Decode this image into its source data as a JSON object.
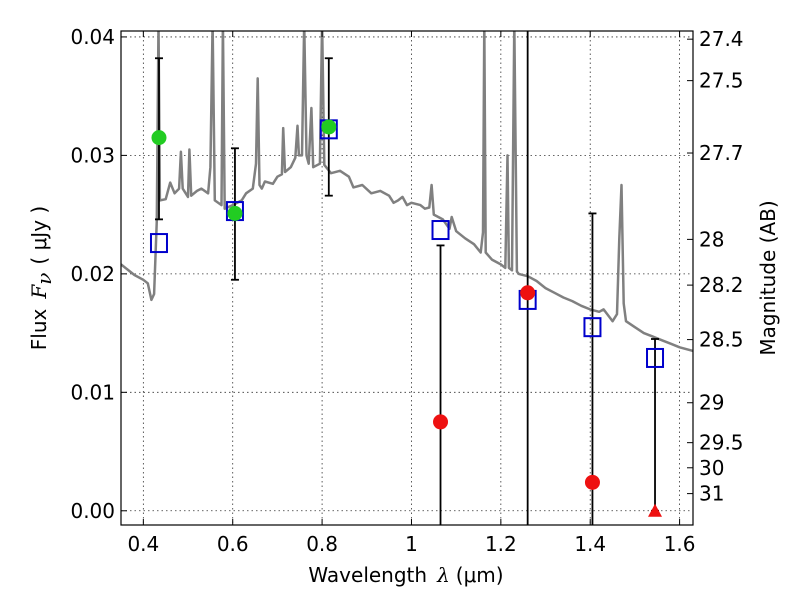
{
  "chart_data": {
    "type": "scatter",
    "xlabel": "Wavelength",
    "xlabel_symbol": "λ",
    "xlabel_unit": "(μm)",
    "ylabel": "Flux",
    "ylabel_symbol": "F",
    "ylabel_subscript": "ν",
    "ylabel_unit": "( μJy )",
    "y2label": "Magnitude (AB)",
    "xlim": [
      0.35,
      1.63
    ],
    "ylim": [
      -0.0012,
      0.0405
    ],
    "grid": true,
    "x_ticks": [
      0.4,
      0.6,
      0.8,
      1.0,
      1.2,
      1.4,
      1.6
    ],
    "x_tick_labels": [
      "0.4",
      "0.6",
      "0.8",
      "1",
      "1.2",
      "1.4",
      "1.6"
    ],
    "y_ticks": [
      0.0,
      0.01,
      0.02,
      0.03,
      0.04
    ],
    "y_tick_labels": [
      "0.00",
      "0.01",
      "0.02",
      "0.03",
      "0.04"
    ],
    "y2_ticks": [
      {
        "label": "27.4",
        "flux": 0.03981
      },
      {
        "label": "27.5",
        "flux": 0.03631
      },
      {
        "label": "27.7",
        "flux": 0.0302
      },
      {
        "label": "28",
        "flux": 0.02291
      },
      {
        "label": "28.2",
        "flux": 0.01905
      },
      {
        "label": "28.5",
        "flux": 0.01445
      },
      {
        "label": "29",
        "flux": 0.00912
      },
      {
        "label": "29.5",
        "flux": 0.00575
      },
      {
        "label": "30",
        "flux": 0.00363
      },
      {
        "label": "31",
        "flux": 0.00145
      }
    ],
    "series": [
      {
        "kind": "line",
        "color": "#808080",
        "points": [
          [
            0.35,
            0.0208
          ],
          [
            0.38,
            0.0199
          ],
          [
            0.4,
            0.0195
          ],
          [
            0.41,
            0.0192
          ],
          [
            0.418,
            0.0178
          ],
          [
            0.424,
            0.0183
          ],
          [
            0.43,
            0.0245
          ],
          [
            0.434,
            0.0412
          ],
          [
            0.437,
            0.0262
          ],
          [
            0.45,
            0.0263
          ],
          [
            0.46,
            0.0277
          ],
          [
            0.47,
            0.0268
          ],
          [
            0.48,
            0.0272
          ],
          [
            0.484,
            0.0303
          ],
          [
            0.488,
            0.0272
          ],
          [
            0.5,
            0.0265
          ],
          [
            0.503,
            0.0305
          ],
          [
            0.507,
            0.0266
          ],
          [
            0.52,
            0.027
          ],
          [
            0.53,
            0.0272
          ],
          [
            0.545,
            0.0268
          ],
          [
            0.55,
            0.029
          ],
          [
            0.555,
            0.0412
          ],
          [
            0.56,
            0.0262
          ],
          [
            0.575,
            0.0258
          ],
          [
            0.578,
            0.0412
          ],
          [
            0.582,
            0.0255
          ],
          [
            0.6,
            0.0258
          ],
          [
            0.62,
            0.0262
          ],
          [
            0.63,
            0.0268
          ],
          [
            0.645,
            0.0272
          ],
          [
            0.652,
            0.0293
          ],
          [
            0.656,
            0.0365
          ],
          [
            0.66,
            0.0275
          ],
          [
            0.665,
            0.0272
          ],
          [
            0.672,
            0.0278
          ],
          [
            0.69,
            0.0276
          ],
          [
            0.7,
            0.0282
          ],
          [
            0.71,
            0.0284
          ],
          [
            0.713,
            0.0323
          ],
          [
            0.717,
            0.0286
          ],
          [
            0.73,
            0.029
          ],
          [
            0.74,
            0.0298
          ],
          [
            0.745,
            0.0325
          ],
          [
            0.748,
            0.03
          ],
          [
            0.755,
            0.03
          ],
          [
            0.76,
            0.0412
          ],
          [
            0.765,
            0.03
          ],
          [
            0.77,
            0.0293
          ],
          [
            0.776,
            0.034
          ],
          [
            0.78,
            0.029
          ],
          [
            0.795,
            0.0293
          ],
          [
            0.8,
            0.0412
          ],
          [
            0.805,
            0.0292
          ],
          [
            0.82,
            0.0285
          ],
          [
            0.84,
            0.0287
          ],
          [
            0.86,
            0.0282
          ],
          [
            0.87,
            0.0273
          ],
          [
            0.89,
            0.0275
          ],
          [
            0.91,
            0.0268
          ],
          [
            0.93,
            0.027
          ],
          [
            0.95,
            0.0266
          ],
          [
            0.96,
            0.026
          ],
          [
            0.97,
            0.0262
          ],
          [
            0.98,
            0.0265
          ],
          [
            0.99,
            0.0258
          ],
          [
            1.0,
            0.026
          ],
          [
            1.02,
            0.0258
          ],
          [
            1.03,
            0.0255
          ],
          [
            1.04,
            0.0256
          ],
          [
            1.045,
            0.0275
          ],
          [
            1.05,
            0.025
          ],
          [
            1.07,
            0.0246
          ],
          [
            1.085,
            0.0238
          ],
          [
            1.09,
            0.0248
          ],
          [
            1.1,
            0.0236
          ],
          [
            1.12,
            0.023
          ],
          [
            1.14,
            0.0225
          ],
          [
            1.155,
            0.0218
          ],
          [
            1.16,
            0.0235
          ],
          [
            1.163,
            0.0412
          ],
          [
            1.166,
            0.0218
          ],
          [
            1.18,
            0.0212
          ],
          [
            1.2,
            0.0208
          ],
          [
            1.21,
            0.0205
          ],
          [
            1.215,
            0.03
          ],
          [
            1.218,
            0.0205
          ],
          [
            1.225,
            0.0203
          ],
          [
            1.23,
            0.0412
          ],
          [
            1.236,
            0.0202
          ],
          [
            1.24,
            0.02
          ],
          [
            1.26,
            0.0198
          ],
          [
            1.28,
            0.0194
          ],
          [
            1.3,
            0.0188
          ],
          [
            1.32,
            0.0184
          ],
          [
            1.34,
            0.018
          ],
          [
            1.36,
            0.0177
          ],
          [
            1.38,
            0.0173
          ],
          [
            1.4,
            0.017
          ],
          [
            1.42,
            0.0168
          ],
          [
            1.43,
            0.017
          ],
          [
            1.45,
            0.016
          ],
          [
            1.46,
            0.0166
          ],
          [
            1.465,
            0.023
          ],
          [
            1.47,
            0.0275
          ],
          [
            1.475,
            0.0175
          ],
          [
            1.48,
            0.016
          ],
          [
            1.5,
            0.0155
          ],
          [
            1.52,
            0.015
          ],
          [
            1.54,
            0.0147
          ],
          [
            1.56,
            0.0144
          ],
          [
            1.58,
            0.0141
          ],
          [
            1.6,
            0.0138
          ],
          [
            1.63,
            0.0135
          ]
        ]
      },
      {
        "kind": "square",
        "color": "#0000cc",
        "points": [
          [
            0.435,
            0.0226
          ],
          [
            0.605,
            0.0253
          ],
          [
            0.815,
            0.0322
          ],
          [
            1.065,
            0.0237
          ],
          [
            1.26,
            0.0178
          ],
          [
            1.405,
            0.0155
          ],
          [
            1.545,
            0.0129
          ]
        ]
      },
      {
        "kind": "circle",
        "color": "#22cc22",
        "points": [
          [
            0.435,
            0.0315
          ],
          [
            0.605,
            0.0251
          ],
          [
            0.815,
            0.0324
          ]
        ]
      },
      {
        "kind": "circle",
        "color": "#ee1111",
        "points": [
          [
            1.065,
            0.0075
          ],
          [
            1.26,
            0.0184
          ],
          [
            1.405,
            0.0024
          ]
        ]
      },
      {
        "kind": "triangle",
        "color": "#ee1111",
        "points": [
          [
            1.545,
            0.0
          ]
        ]
      },
      {
        "kind": "errorbar",
        "color": "#000000",
        "bars": [
          {
            "x": 0.435,
            "lo": 0.0246,
            "hi": 0.0382
          },
          {
            "x": 0.605,
            "lo": 0.0195,
            "hi": 0.0306
          },
          {
            "x": 0.815,
            "lo": 0.0266,
            "hi": 0.0382
          },
          {
            "x": 1.065,
            "lo": -0.0012,
            "hi": 0.0224
          },
          {
            "x": 1.26,
            "lo": -0.0012,
            "hi": 0.0405
          },
          {
            "x": 1.405,
            "lo": -0.0012,
            "hi": 0.0251
          },
          {
            "x": 1.545,
            "lo": 0.0,
            "hi": 0.0145
          }
        ]
      }
    ]
  }
}
